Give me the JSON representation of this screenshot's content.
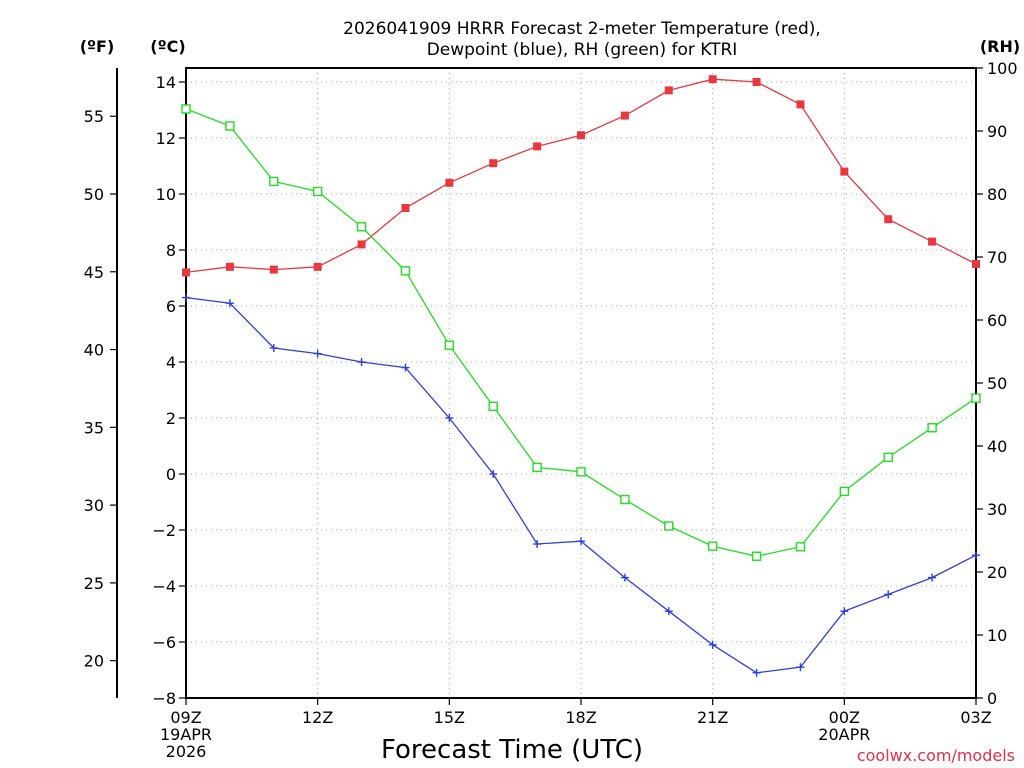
{
  "chart_data": {
    "type": "line",
    "title": [
      "2026041909 HRRR Forecast 2-meter Temperature (red),",
      "Dewpoint (blue), RH (green) for KTRI"
    ],
    "xlabel": "Forecast Time (UTC)",
    "credit": "coolwx.com/models",
    "units": {
      "fahrenheit": "(ºF)",
      "celsius": "(ºC)",
      "rh": "(RH)"
    },
    "x_hours": [
      0,
      1,
      2,
      3,
      4,
      5,
      6,
      7,
      8,
      9,
      10,
      11,
      12,
      13,
      14,
      15,
      16,
      17,
      18
    ],
    "x_range": [
      0,
      18
    ],
    "x_ticks": [
      {
        "h": 0,
        "lines": [
          "09Z",
          "19APR",
          "2026"
        ]
      },
      {
        "h": 3,
        "lines": [
          "12Z"
        ]
      },
      {
        "h": 6,
        "lines": [
          "15Z"
        ]
      },
      {
        "h": 9,
        "lines": [
          "18Z"
        ]
      },
      {
        "h": 12,
        "lines": [
          "21Z"
        ]
      },
      {
        "h": 15,
        "lines": [
          "00Z",
          "20APR"
        ]
      },
      {
        "h": 18,
        "lines": [
          "03Z"
        ]
      }
    ],
    "celsius_axis": {
      "range": [
        -8,
        14.5
      ],
      "ticks": [
        "14",
        "12",
        "10",
        "8",
        "6",
        "4",
        "2",
        "0",
        "−2",
        "−4",
        "−6",
        "−8"
      ],
      "tick_values": [
        14,
        12,
        10,
        8,
        6,
        4,
        2,
        0,
        -2,
        -4,
        -6,
        -8
      ]
    },
    "fahrenheit_axis": {
      "ticks": [
        "55",
        "50",
        "45",
        "40",
        "35",
        "30",
        "25",
        "20"
      ],
      "tick_values": [
        55,
        50,
        45,
        40,
        35,
        30,
        25,
        20
      ]
    },
    "rh_axis": {
      "range": [
        0,
        100
      ],
      "ticks": [
        "100",
        "90",
        "80",
        "70",
        "60",
        "50",
        "40",
        "30",
        "20",
        "10",
        "0"
      ],
      "tick_values": [
        100,
        90,
        80,
        70,
        60,
        50,
        40,
        30,
        20,
        10,
        0
      ]
    },
    "series": [
      {
        "name": "2-meter Temperature",
        "axis": "celsius",
        "color": "#e8383f",
        "marker": "filled-square",
        "values": [
          7.2,
          7.4,
          7.3,
          7.4,
          8.2,
          9.5,
          10.4,
          11.1,
          11.7,
          12.1,
          12.8,
          13.7,
          14.1,
          14.0,
          13.2,
          10.8,
          9.1,
          8.3,
          7.5
        ]
      },
      {
        "name": "Dewpoint",
        "axis": "celsius",
        "color": "#2e3fd8",
        "marker": "plus",
        "values": [
          6.3,
          6.1,
          4.5,
          4.3,
          4.0,
          3.8,
          2.0,
          0.0,
          -2.5,
          -2.4,
          -3.7,
          -4.9,
          -6.1,
          -7.1,
          -6.9,
          -4.9,
          -4.3,
          -3.7,
          -2.9
        ]
      },
      {
        "name": "Relative Humidity",
        "axis": "rh",
        "color": "#22dd22",
        "marker": "open-square",
        "values": [
          93.5,
          90.8,
          82.0,
          80.4,
          74.8,
          67.8,
          56.0,
          46.3,
          36.6,
          35.9,
          31.5,
          27.3,
          24.1,
          22.5,
          24.0,
          32.8,
          38.2,
          42.9,
          47.6
        ]
      }
    ]
  }
}
